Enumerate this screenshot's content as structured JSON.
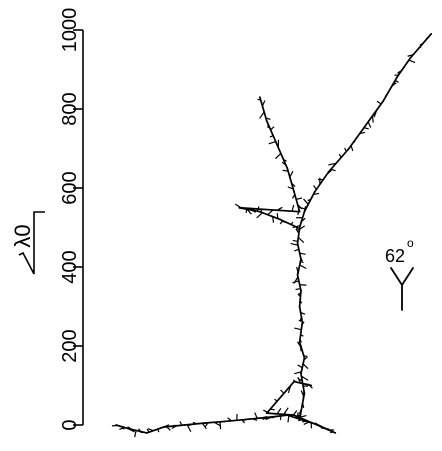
{
  "chart_data": {
    "type": "scatter",
    "title": "",
    "ylabel": "λ0",
    "ylim": [
      0,
      1000
    ],
    "yticks": [
      0,
      200,
      400,
      600,
      800,
      1000
    ],
    "ytick_labels": [
      "0",
      "200",
      "400",
      "600",
      "800",
      "1000"
    ],
    "annotation": {
      "text": "62",
      "degree_symbol": "o"
    },
    "series": [
      {
        "values": [
          [
            0,
            0
          ],
          [
            20,
            -10
          ],
          [
            45,
            -20
          ],
          [
            70,
            -5
          ],
          [
            100,
            0
          ],
          [
            130,
            5
          ],
          [
            165,
            10
          ],
          [
            195,
            15
          ],
          [
            225,
            20
          ],
          [
            250,
            25
          ],
          [
            268,
            15
          ],
          [
            275,
            80
          ],
          [
            270,
            130
          ],
          [
            275,
            170
          ],
          [
            268,
            210
          ],
          [
            272,
            260
          ],
          [
            268,
            300
          ],
          [
            270,
            340
          ],
          [
            265,
            380
          ],
          [
            270,
            420
          ],
          [
            265,
            460
          ],
          [
            268,
            500
          ],
          [
            275,
            540
          ],
          [
            290,
            590
          ],
          [
            310,
            640
          ],
          [
            340,
            700
          ],
          [
            365,
            760
          ],
          [
            390,
            820
          ],
          [
            410,
            880
          ],
          [
            430,
            930
          ],
          [
            460,
            990
          ],
          [
            265,
            500
          ],
          [
            240,
            520
          ],
          [
            210,
            540
          ],
          [
            180,
            550
          ],
          [
            268,
            540
          ],
          [
            260,
            590
          ],
          [
            250,
            650
          ],
          [
            235,
            710
          ],
          [
            220,
            770
          ],
          [
            210,
            830
          ],
          [
            268,
            15
          ],
          [
            295,
            0
          ],
          [
            320,
            -20
          ],
          [
            260,
            25
          ],
          [
            220,
            30
          ],
          [
            260,
            110
          ],
          [
            285,
            100
          ]
        ]
      }
    ]
  }
}
